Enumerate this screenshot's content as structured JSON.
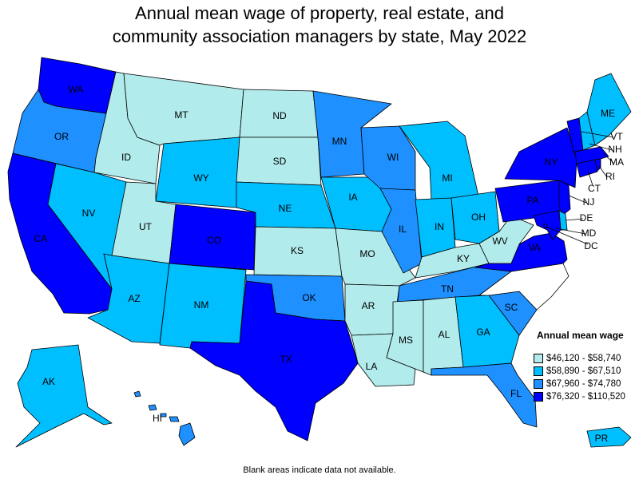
{
  "title_line1": "Annual mean wage of property, real estate, and",
  "title_line2": "community association managers by state, May 2022",
  "legend": {
    "title": "Annual mean wage",
    "bins": [
      {
        "label": "$46,120 - $58,740",
        "color": "#b2ebeb"
      },
      {
        "label": "$58,890 - $67,510",
        "color": "#00bfff"
      },
      {
        "label": "$67,960 - $74,780",
        "color": "#1e90ff"
      },
      {
        "label": "$76,320 - $110,520",
        "color": "#0000ff"
      }
    ]
  },
  "footnote": "Blank areas indicate data not available.",
  "states": {
    "WA": {
      "label": "WA",
      "bin": 3
    },
    "OR": {
      "label": "OR",
      "bin": 2
    },
    "CA": {
      "label": "CA",
      "bin": 3
    },
    "ID": {
      "label": "ID",
      "bin": 0
    },
    "NV": {
      "label": "NV",
      "bin": 1
    },
    "MT": {
      "label": "MT",
      "bin": 0
    },
    "WY": {
      "label": "WY",
      "bin": 1
    },
    "UT": {
      "label": "UT",
      "bin": 0
    },
    "AZ": {
      "label": "AZ",
      "bin": 1
    },
    "CO": {
      "label": "CO",
      "bin": 3
    },
    "NM": {
      "label": "NM",
      "bin": 1
    },
    "ND": {
      "label": "ND",
      "bin": 0
    },
    "SD": {
      "label": "SD",
      "bin": 0
    },
    "NE": {
      "label": "NE",
      "bin": 1
    },
    "KS": {
      "label": "KS",
      "bin": 0
    },
    "OK": {
      "label": "OK",
      "bin": 2
    },
    "TX": {
      "label": "TX",
      "bin": 3
    },
    "MN": {
      "label": "MN",
      "bin": 2
    },
    "IA": {
      "label": "IA",
      "bin": 1
    },
    "MO": {
      "label": "MO",
      "bin": 0
    },
    "AR": {
      "label": "AR",
      "bin": 0
    },
    "LA": {
      "label": "LA",
      "bin": 0
    },
    "WI": {
      "label": "WI",
      "bin": 2
    },
    "IL": {
      "label": "IL",
      "bin": 2
    },
    "MS": {
      "label": "MS",
      "bin": 0
    },
    "MI": {
      "label": "MI",
      "bin": 1
    },
    "IN": {
      "label": "IN",
      "bin": 1
    },
    "KY": {
      "label": "KY",
      "bin": 0
    },
    "TN": {
      "label": "TN",
      "bin": 2
    },
    "AL": {
      "label": "AL",
      "bin": 0
    },
    "OH": {
      "label": "OH",
      "bin": 1
    },
    "GA": {
      "label": "GA",
      "bin": 1
    },
    "FL": {
      "label": "FL",
      "bin": 2
    },
    "SC": {
      "label": "SC",
      "bin": 2
    },
    "NC": {
      "label": "",
      "bin": -1
    },
    "VA": {
      "label": "VA",
      "bin": 3
    },
    "WV": {
      "label": "WV",
      "bin": 0
    },
    "PA": {
      "label": "PA",
      "bin": 3
    },
    "NY": {
      "label": "NY",
      "bin": 3
    },
    "NJ": {
      "label": "NJ",
      "bin": 3
    },
    "DE": {
      "label": "DE",
      "bin": 1
    },
    "MD": {
      "label": "MD",
      "bin": 3
    },
    "DC": {
      "label": "DC",
      "bin": 3
    },
    "CT": {
      "label": "CT",
      "bin": 3
    },
    "RI": {
      "label": "RI",
      "bin": 3
    },
    "MA": {
      "label": "MA",
      "bin": 3
    },
    "VT": {
      "label": "VT",
      "bin": 3
    },
    "NH": {
      "label": "NH",
      "bin": 1
    },
    "ME": {
      "label": "ME",
      "bin": 1
    },
    "AK": {
      "label": "AK",
      "bin": 1
    },
    "HI": {
      "label": "HI",
      "bin": 2
    },
    "PR": {
      "label": "PR",
      "bin": 1
    }
  }
}
